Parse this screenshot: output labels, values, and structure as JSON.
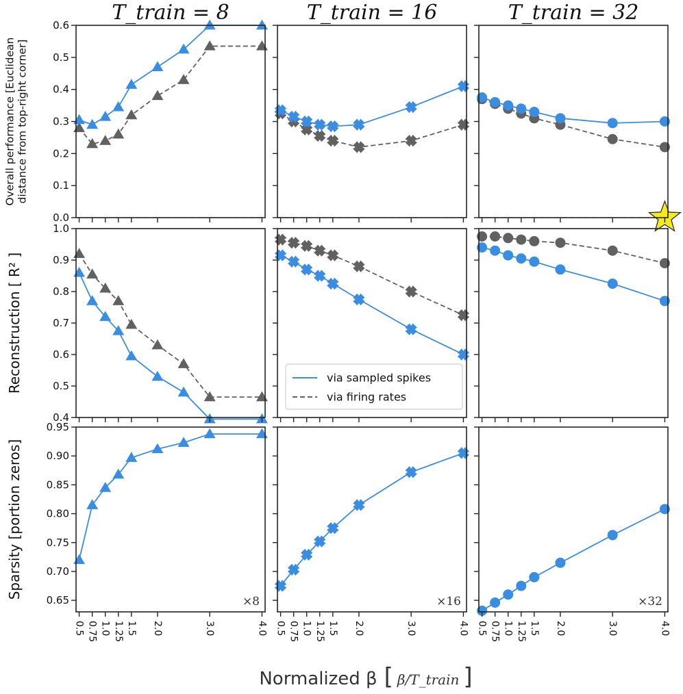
{
  "x_axis_label": "Normalized β",
  "x_axis_unit": "β/T_train",
  "legend": [
    {
      "label": "via sampled spikes",
      "style": "solid"
    },
    {
      "label": "via firing rates",
      "style": "dashed"
    }
  ],
  "colors": {
    "spikes": "#3a8de0",
    "rates": "#616161",
    "zero_line": "#c8c8c8",
    "star": "#f5ea1c"
  },
  "chart_data": [
    {
      "type": "line",
      "title": "T_train = 8",
      "panel_row": 0,
      "panel_col": 0,
      "ylabel": "Overall performance [Euclidean distance from top-right corner]",
      "xlim": [
        0.5,
        4.0
      ],
      "ylim": [
        0.0,
        0.6
      ],
      "yticks": [
        "0.0",
        "0.1",
        "0.2",
        "0.3",
        "0.4",
        "0.5",
        "0.6"
      ],
      "xticks": [
        "0.5",
        "0.75",
        "1.0",
        "1.25",
        "1.5",
        "2.0",
        "3.0",
        "4.0"
      ],
      "marker": "triangle",
      "zero_line": true,
      "series": [
        {
          "name": "via sampled spikes",
          "x": [
            0.5,
            0.75,
            1.0,
            1.25,
            1.5,
            2.0,
            2.5,
            3.0,
            4.0
          ],
          "values": [
            0.305,
            0.29,
            0.315,
            0.345,
            0.415,
            0.47,
            0.525,
            0.6,
            0.6
          ]
        },
        {
          "name": "via firing rates",
          "x": [
            0.5,
            0.75,
            1.0,
            1.25,
            1.5,
            2.0,
            2.5,
            3.0,
            4.0
          ],
          "values": [
            0.28,
            0.23,
            0.24,
            0.26,
            0.32,
            0.38,
            0.43,
            0.535,
            0.535
          ]
        }
      ]
    },
    {
      "type": "line",
      "title": "T_train = 16",
      "panel_row": 0,
      "panel_col": 1,
      "xlim": [
        0.5,
        4.0
      ],
      "ylim": [
        0.0,
        0.6
      ],
      "xticks": [
        "0.5",
        "0.75",
        "1.0",
        "1.25",
        "1.5",
        "2.0",
        "3.0",
        "4.0"
      ],
      "marker": "x",
      "zero_line": true,
      "series": [
        {
          "name": "via sampled spikes",
          "x": [
            0.5,
            0.75,
            1.0,
            1.25,
            1.5,
            2.0,
            3.0,
            4.0
          ],
          "values": [
            0.335,
            0.315,
            0.3,
            0.29,
            0.285,
            0.29,
            0.345,
            0.41
          ]
        },
        {
          "name": "via firing rates",
          "x": [
            0.5,
            0.75,
            1.0,
            1.25,
            1.5,
            2.0,
            3.0,
            4.0
          ],
          "values": [
            0.325,
            0.3,
            0.275,
            0.255,
            0.24,
            0.22,
            0.24,
            0.29
          ]
        }
      ]
    },
    {
      "type": "line",
      "title": "T_train = 32",
      "panel_row": 0,
      "panel_col": 2,
      "xlim": [
        0.5,
        4.0
      ],
      "ylim": [
        0.0,
        0.6
      ],
      "xticks": [
        "0.5",
        "0.75",
        "1.0",
        "1.25",
        "1.5",
        "2.0",
        "3.0",
        "4.0"
      ],
      "marker": "circle",
      "zero_line": true,
      "star_at": [
        4.0,
        0.0
      ],
      "series": [
        {
          "name": "via sampled spikes",
          "x": [
            0.5,
            0.75,
            1.0,
            1.25,
            1.5,
            2.0,
            3.0,
            4.0
          ],
          "values": [
            0.375,
            0.36,
            0.35,
            0.34,
            0.33,
            0.31,
            0.295,
            0.3
          ]
        },
        {
          "name": "via firing rates",
          "x": [
            0.5,
            0.75,
            1.0,
            1.25,
            1.5,
            2.0,
            3.0,
            4.0
          ],
          "values": [
            0.37,
            0.355,
            0.34,
            0.325,
            0.31,
            0.29,
            0.245,
            0.22
          ]
        }
      ]
    },
    {
      "type": "line",
      "panel_row": 1,
      "panel_col": 0,
      "ylabel": "Reconstruction [ R² ]",
      "xlim": [
        0.5,
        4.0
      ],
      "ylim": [
        0.4,
        1.0
      ],
      "yticks": [
        "0.4",
        "0.5",
        "0.6",
        "0.7",
        "0.8",
        "0.9",
        "1.0"
      ],
      "xticks": [
        "0.5",
        "0.75",
        "1.0",
        "1.25",
        "1.5",
        "2.0",
        "3.0",
        "4.0"
      ],
      "marker": "triangle",
      "series": [
        {
          "name": "via sampled spikes",
          "x": [
            0.5,
            0.75,
            1.0,
            1.25,
            1.5,
            2.0,
            2.5,
            3.0,
            4.0
          ],
          "values": [
            0.86,
            0.77,
            0.72,
            0.675,
            0.595,
            0.53,
            0.48,
            0.395,
            0.395
          ]
        },
        {
          "name": "via firing rates",
          "x": [
            0.5,
            0.75,
            1.0,
            1.25,
            1.5,
            2.0,
            2.5,
            3.0,
            4.0
          ],
          "values": [
            0.92,
            0.855,
            0.81,
            0.77,
            0.695,
            0.63,
            0.57,
            0.465,
            0.465
          ]
        }
      ]
    },
    {
      "type": "line",
      "panel_row": 1,
      "panel_col": 1,
      "xlim": [
        0.5,
        4.0
      ],
      "ylim": [
        0.4,
        1.0
      ],
      "xticks": [
        "0.5",
        "0.75",
        "1.0",
        "1.25",
        "1.5",
        "2.0",
        "3.0",
        "4.0"
      ],
      "marker": "x",
      "legend": true,
      "series": [
        {
          "name": "via sampled spikes",
          "x": [
            0.5,
            0.75,
            1.0,
            1.25,
            1.5,
            2.0,
            3.0,
            4.0
          ],
          "values": [
            0.915,
            0.895,
            0.87,
            0.85,
            0.825,
            0.775,
            0.68,
            0.6
          ]
        },
        {
          "name": "via firing rates",
          "x": [
            0.5,
            0.75,
            1.0,
            1.25,
            1.5,
            2.0,
            3.0,
            4.0
          ],
          "values": [
            0.965,
            0.955,
            0.945,
            0.93,
            0.915,
            0.88,
            0.8,
            0.725
          ]
        }
      ]
    },
    {
      "type": "line",
      "panel_row": 1,
      "panel_col": 2,
      "xlim": [
        0.5,
        4.0
      ],
      "ylim": [
        0.4,
        1.0
      ],
      "xticks": [
        "0.5",
        "0.75",
        "1.0",
        "1.25",
        "1.5",
        "2.0",
        "3.0",
        "4.0"
      ],
      "marker": "circle",
      "series": [
        {
          "name": "via sampled spikes",
          "x": [
            0.5,
            0.75,
            1.0,
            1.25,
            1.5,
            2.0,
            3.0,
            4.0
          ],
          "values": [
            0.94,
            0.93,
            0.915,
            0.905,
            0.895,
            0.87,
            0.825,
            0.77
          ]
        },
        {
          "name": "via firing rates",
          "x": [
            0.5,
            0.75,
            1.0,
            1.25,
            1.5,
            2.0,
            3.0,
            4.0
          ],
          "values": [
            0.975,
            0.975,
            0.97,
            0.965,
            0.96,
            0.955,
            0.93,
            0.89
          ]
        }
      ]
    },
    {
      "type": "line",
      "panel_row": 2,
      "panel_col": 0,
      "ylabel": "Sparsity [portion zeros]",
      "xlim": [
        0.5,
        4.0
      ],
      "ylim": [
        0.63,
        0.95
      ],
      "yticks": [
        "0.65",
        "0.70",
        "0.75",
        "0.80",
        "0.85",
        "0.90",
        "0.95"
      ],
      "xticks": [
        "0.5",
        "0.75",
        "1.0",
        "1.25",
        "1.5",
        "2.0",
        "3.0",
        "4.0"
      ],
      "marker": "triangle",
      "corner_label": "×8",
      "series": [
        {
          "name": "via sampled spikes",
          "x": [
            0.5,
            0.75,
            1.0,
            1.25,
            1.5,
            2.0,
            2.5,
            3.0,
            4.0
          ],
          "values": [
            0.72,
            0.815,
            0.845,
            0.868,
            0.897,
            0.912,
            0.923,
            0.938,
            0.938
          ]
        }
      ]
    },
    {
      "type": "line",
      "panel_row": 2,
      "panel_col": 1,
      "xlim": [
        0.5,
        4.0
      ],
      "ylim": [
        0.63,
        0.95
      ],
      "xticks": [
        "0.5",
        "0.75",
        "1.0",
        "1.25",
        "1.5",
        "2.0",
        "3.0",
        "4.0"
      ],
      "marker": "x",
      "corner_label": "×16",
      "series": [
        {
          "name": "via sampled spikes",
          "x": [
            0.5,
            0.75,
            1.0,
            1.25,
            1.5,
            2.0,
            3.0,
            4.0
          ],
          "values": [
            0.675,
            0.703,
            0.729,
            0.752,
            0.775,
            0.815,
            0.872,
            0.905
          ]
        }
      ]
    },
    {
      "type": "line",
      "panel_row": 2,
      "panel_col": 2,
      "xlim": [
        0.5,
        4.0
      ],
      "ylim": [
        0.63,
        0.95
      ],
      "xticks": [
        "0.5",
        "0.75",
        "1.0",
        "1.25",
        "1.5",
        "2.0",
        "3.0",
        "4.0"
      ],
      "marker": "circle",
      "corner_label": "×32",
      "series": [
        {
          "name": "via sampled spikes",
          "x": [
            0.5,
            0.75,
            1.0,
            1.25,
            1.5,
            2.0,
            3.0,
            4.0
          ],
          "values": [
            0.632,
            0.646,
            0.66,
            0.675,
            0.69,
            0.715,
            0.763,
            0.808
          ]
        }
      ]
    }
  ]
}
